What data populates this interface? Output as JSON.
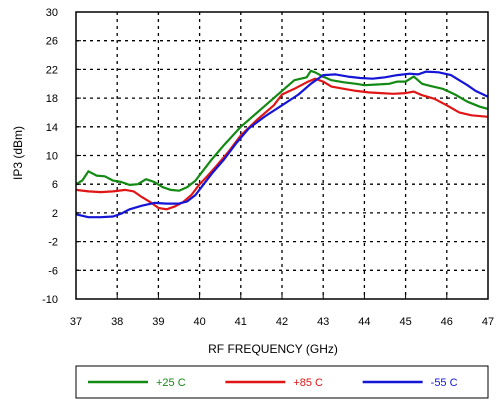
{
  "chart_data": {
    "type": "line",
    "xlabel": "RF FREQUENCY (GHz)",
    "ylabel": "IP3 (dBm)",
    "xlim": [
      37,
      47
    ],
    "ylim": [
      -10,
      30
    ],
    "x_ticks": [
      "37",
      "38",
      "39",
      "40",
      "41",
      "42",
      "43",
      "44",
      "45",
      "46",
      "47"
    ],
    "y_ticks": [
      "-10",
      "-6",
      "-2",
      "2",
      "6",
      "10",
      "14",
      "18",
      "22",
      "26",
      "30"
    ],
    "grid": true,
    "legend_position": "bottom",
    "series": [
      {
        "name": "+25 C",
        "color": "#138a13",
        "points": [
          [
            37,
            6.0
          ],
          [
            37.15,
            6.5
          ],
          [
            37.3,
            7.8
          ],
          [
            37.5,
            7.2
          ],
          [
            37.7,
            7.1
          ],
          [
            37.9,
            6.5
          ],
          [
            38.1,
            6.3
          ],
          [
            38.3,
            5.9
          ],
          [
            38.5,
            6.0
          ],
          [
            38.7,
            6.7
          ],
          [
            38.9,
            6.3
          ],
          [
            39.1,
            5.6
          ],
          [
            39.3,
            5.2
          ],
          [
            39.5,
            5.1
          ],
          [
            39.7,
            5.6
          ],
          [
            39.9,
            6.5
          ],
          [
            40.1,
            8.0
          ],
          [
            40.3,
            9.5
          ],
          [
            40.6,
            11.5
          ],
          [
            41.0,
            14.0
          ],
          [
            41.4,
            16.0
          ],
          [
            41.8,
            18.0
          ],
          [
            42.1,
            19.5
          ],
          [
            42.3,
            20.5
          ],
          [
            42.6,
            20.9
          ],
          [
            42.7,
            21.8
          ],
          [
            42.8,
            21.6
          ],
          [
            43.0,
            21.0
          ],
          [
            43.2,
            20.5
          ],
          [
            43.5,
            20.2
          ],
          [
            43.8,
            20.0
          ],
          [
            44.0,
            19.8
          ],
          [
            44.3,
            19.9
          ],
          [
            44.6,
            20.0
          ],
          [
            44.8,
            20.3
          ],
          [
            45.0,
            20.3
          ],
          [
            45.2,
            21.0
          ],
          [
            45.4,
            20.0
          ],
          [
            45.6,
            19.7
          ],
          [
            45.9,
            19.3
          ],
          [
            46.2,
            18.5
          ],
          [
            46.5,
            17.5
          ],
          [
            46.8,
            16.8
          ],
          [
            47.0,
            16.5
          ]
        ]
      },
      {
        "name": "+85 C",
        "color": "#e01616",
        "points": [
          [
            37,
            5.2
          ],
          [
            37.3,
            5.0
          ],
          [
            37.6,
            4.9
          ],
          [
            37.9,
            5.0
          ],
          [
            38.2,
            5.2
          ],
          [
            38.4,
            5.0
          ],
          [
            38.6,
            4.2
          ],
          [
            38.8,
            3.5
          ],
          [
            39.0,
            2.7
          ],
          [
            39.2,
            2.5
          ],
          [
            39.4,
            2.9
          ],
          [
            39.6,
            3.5
          ],
          [
            39.8,
            4.5
          ],
          [
            40.0,
            6.0
          ],
          [
            40.2,
            7.2
          ],
          [
            40.4,
            8.5
          ],
          [
            40.7,
            10.5
          ],
          [
            41.0,
            12.8
          ],
          [
            41.4,
            15.0
          ],
          [
            41.8,
            17.0
          ],
          [
            42.0,
            18.5
          ],
          [
            42.3,
            19.3
          ],
          [
            42.6,
            20.2
          ],
          [
            42.8,
            20.7
          ],
          [
            43.0,
            20.3
          ],
          [
            43.2,
            19.6
          ],
          [
            43.5,
            19.3
          ],
          [
            43.8,
            19.0
          ],
          [
            44.1,
            18.8
          ],
          [
            44.4,
            18.7
          ],
          [
            44.7,
            18.6
          ],
          [
            45.0,
            18.7
          ],
          [
            45.2,
            18.9
          ],
          [
            45.4,
            18.4
          ],
          [
            45.7,
            17.9
          ],
          [
            46.0,
            17.0
          ],
          [
            46.3,
            16.0
          ],
          [
            46.6,
            15.6
          ],
          [
            47.0,
            15.4
          ]
        ]
      },
      {
        "name": "-55 C",
        "color": "#1515d6",
        "points": [
          [
            37,
            1.8
          ],
          [
            37.3,
            1.4
          ],
          [
            37.6,
            1.4
          ],
          [
            37.9,
            1.5
          ],
          [
            38.1,
            1.9
          ],
          [
            38.3,
            2.5
          ],
          [
            38.6,
            3.0
          ],
          [
            38.9,
            3.4
          ],
          [
            39.2,
            3.3
          ],
          [
            39.5,
            3.3
          ],
          [
            39.7,
            3.6
          ],
          [
            39.9,
            4.5
          ],
          [
            40.1,
            6.0
          ],
          [
            40.3,
            7.5
          ],
          [
            40.6,
            9.5
          ],
          [
            40.9,
            11.8
          ],
          [
            41.2,
            13.8
          ],
          [
            41.6,
            15.5
          ],
          [
            42.0,
            17.0
          ],
          [
            42.4,
            18.5
          ],
          [
            42.7,
            20.0
          ],
          [
            43.0,
            21.2
          ],
          [
            43.3,
            21.3
          ],
          [
            43.6,
            21.0
          ],
          [
            43.9,
            20.8
          ],
          [
            44.2,
            20.7
          ],
          [
            44.5,
            20.9
          ],
          [
            44.8,
            21.2
          ],
          [
            45.1,
            21.4
          ],
          [
            45.3,
            21.3
          ],
          [
            45.5,
            21.7
          ],
          [
            45.8,
            21.6
          ],
          [
            46.1,
            21.2
          ],
          [
            46.3,
            20.5
          ],
          [
            46.5,
            19.8
          ],
          [
            46.7,
            19.0
          ],
          [
            47.0,
            18.2
          ]
        ]
      }
    ]
  }
}
